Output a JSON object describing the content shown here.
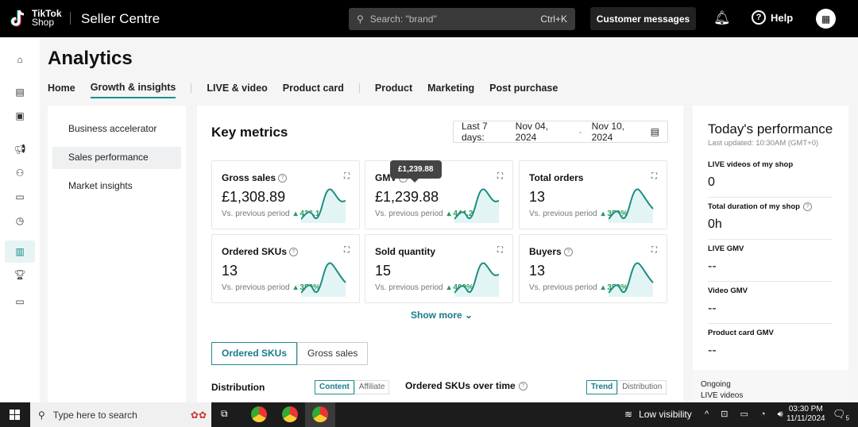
{
  "header": {
    "brand_line1": "TikTok",
    "brand_line2": "Shop",
    "product": "Seller Centre",
    "search_placeholder": "Search: \"brand\"",
    "search_shortcut": "Ctrl+K",
    "customer_messages": "Customer messages",
    "help": "Help"
  },
  "rail_icons": [
    "home-icon",
    "orders-icon",
    "products-icon",
    "marketing-icon",
    "users-icon",
    "live-icon",
    "timer-icon",
    "analytics-icon",
    "trophy-icon",
    "wallet-icon"
  ],
  "page": {
    "title": "Analytics"
  },
  "tabs": [
    {
      "label": "Home"
    },
    {
      "label": "Growth & insights",
      "active": true
    },
    {
      "label": "LIVE & video"
    },
    {
      "label": "Product card"
    },
    {
      "label": "Product"
    },
    {
      "label": "Marketing"
    },
    {
      "label": "Post purchase"
    }
  ],
  "subnav": [
    {
      "label": "Business accelerator"
    },
    {
      "label": "Sales performance",
      "active": true
    },
    {
      "label": "Market insights"
    }
  ],
  "key_metrics": {
    "title": "Key metrics",
    "date_prefix": "Last 7 days:",
    "date_start": "Nov 04, 2024",
    "date_sep": "-",
    "date_end": "Nov 10, 2024",
    "vs_label": "Vs. previous period",
    "cards": [
      {
        "label": "Gross sales",
        "help": true,
        "value": "£1,308.89",
        "change": "426.12%"
      },
      {
        "label": "GMV",
        "help": true,
        "value": "£1,239.88",
        "change": "444.24%"
      },
      {
        "label": "Total orders",
        "help": false,
        "value": "13",
        "change": "350%"
      },
      {
        "label": "Ordered SKUs",
        "help": true,
        "value": "13",
        "change": "350%"
      },
      {
        "label": "Sold quantity",
        "help": false,
        "value": "15",
        "change": "400%"
      },
      {
        "label": "Buyers",
        "help": true,
        "value": "13",
        "change": "350%"
      }
    ],
    "tooltip": "£1,239.88",
    "show_more": "Show more",
    "segments": [
      {
        "label": "Ordered SKUs",
        "active": true
      },
      {
        "label": "Gross sales"
      }
    ],
    "distribution": "Distribution",
    "dist_toggle": [
      {
        "label": "Content",
        "active": true
      },
      {
        "label": "Affiliate"
      }
    ],
    "over_time": "Ordered SKUs over time",
    "time_toggle": [
      {
        "label": "Trend",
        "active": true
      },
      {
        "label": "Distribution"
      }
    ]
  },
  "today": {
    "title": "Today's performance",
    "updated": "Last updated: 10:30AM (GMT+0)",
    "metrics": [
      {
        "label": "LIVE videos of my shop",
        "value": "0"
      },
      {
        "label": "Total duration of my shop",
        "value": "0h",
        "help": true
      },
      {
        "label": "LIVE GMV",
        "value": "--"
      },
      {
        "label": "Video GMV",
        "value": "--"
      },
      {
        "label": "Product card GMV",
        "value": "--"
      }
    ],
    "ongoing": "Ongoing",
    "ongoing2": "LIVE videos"
  },
  "colors": {
    "accent": "#1a8f8f",
    "positive": "#2a9a5a"
  },
  "taskbar": {
    "search_placeholder": "Type here to search",
    "weather": "Low visibility",
    "time": "03:30 PM",
    "date": "11/11/2024",
    "notifications": "5"
  }
}
